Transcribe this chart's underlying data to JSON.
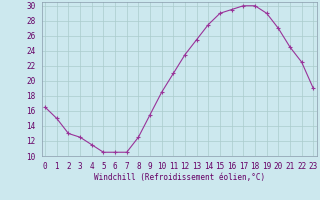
{
  "x": [
    0,
    1,
    2,
    3,
    4,
    5,
    6,
    7,
    8,
    9,
    10,
    11,
    12,
    13,
    14,
    15,
    16,
    17,
    18,
    19,
    20,
    21,
    22,
    23
  ],
  "y": [
    16.5,
    15.0,
    13.0,
    12.5,
    11.5,
    10.5,
    10.5,
    10.5,
    12.5,
    15.5,
    18.5,
    21.0,
    23.5,
    25.5,
    27.5,
    29.0,
    29.5,
    30.0,
    30.0,
    29.0,
    27.0,
    24.5,
    22.5,
    19.0
  ],
  "line_color": "#993399",
  "marker": "+",
  "marker_size": 3,
  "marker_lw": 0.8,
  "line_width": 0.8,
  "bg_color": "#cce8ee",
  "grid_color": "#aacccc",
  "xlabel": "Windchill (Refroidissement éolien,°C)",
  "xlabel_fontsize": 5.5,
  "tick_fontsize": 5.5,
  "ylim": [
    10,
    30.5
  ],
  "yticks": [
    10,
    12,
    14,
    16,
    18,
    20,
    22,
    24,
    26,
    28,
    30
  ],
  "xticks": [
    0,
    1,
    2,
    3,
    4,
    5,
    6,
    7,
    8,
    9,
    10,
    11,
    12,
    13,
    14,
    15,
    16,
    17,
    18,
    19,
    20,
    21,
    22,
    23
  ],
  "xlim": [
    -0.3,
    23.3
  ]
}
